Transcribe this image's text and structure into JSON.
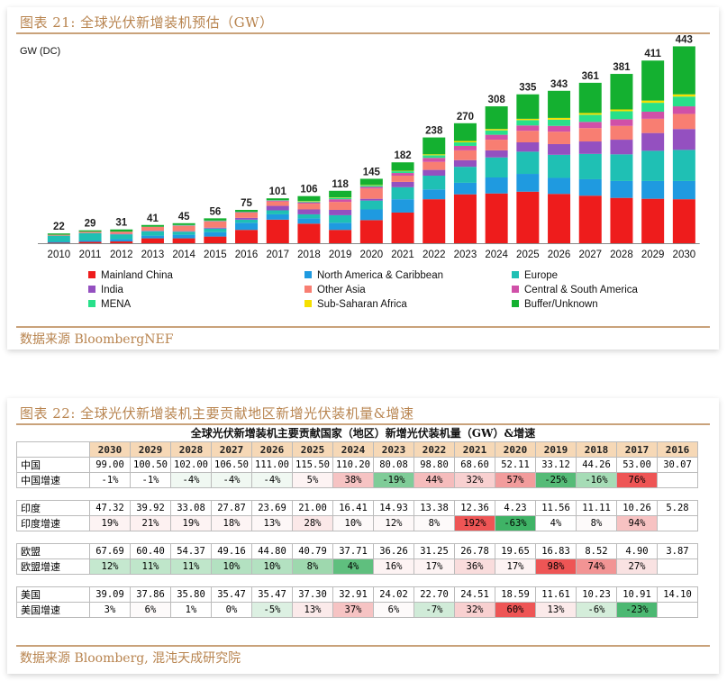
{
  "panel1": {
    "title": "图表 21:  全球光伏新增装机预估（GW）",
    "source": "数据来源  BloombergNEF"
  },
  "panel2": {
    "title": "图表 22:  全球光伏新增装机主要贡献地区新增光伏装机量&增速",
    "table_title": "全球光伏新增装机主要贡献国家（地区）新增光伏装机量（GW）&增速",
    "source": "数据来源  Bloomberg, 混沌天成研究院"
  },
  "chart_data": [
    {
      "type": "bar",
      "stacked": true,
      "ylabel": "GW (DC)",
      "categories": [
        "2010",
        "2011",
        "2012",
        "2013",
        "2014",
        "2015",
        "2016",
        "2017",
        "2018",
        "2019",
        "2020",
        "2021",
        "2022",
        "2023",
        "2024",
        "2025",
        "2026",
        "2027",
        "2028",
        "2029",
        "2030"
      ],
      "totals": [
        22,
        29,
        31,
        41,
        45,
        56,
        75,
        101,
        106,
        118,
        145,
        182,
        238,
        270,
        308,
        335,
        343,
        361,
        381,
        411,
        443
      ],
      "ylim": [
        0,
        450
      ],
      "legend_position": "bottom",
      "series": [
        {
          "name": "Mainland China",
          "color": "#ee1c1c",
          "values": [
            1,
            3,
            4,
            11,
            11,
            15,
            30,
            53,
            44,
            30,
            52,
            69,
            99,
            110,
            112,
            116,
            111,
            107,
            102,
            100,
            99
          ]
        },
        {
          "name": "North America & Caribbean",
          "color": "#1f9ae0",
          "values": [
            2,
            3,
            5,
            6,
            8,
            10,
            16,
            12,
            12,
            16,
            24,
            30,
            22,
            26,
            36,
            40,
            36,
            37,
            38,
            40,
            41
          ]
        },
        {
          "name": "Europe",
          "color": "#1fc0b4",
          "values": [
            14,
            17,
            11,
            10,
            7,
            8,
            7,
            9,
            9,
            17,
            20,
            27,
            31,
            36,
            45,
            50,
            52,
            57,
            60,
            68,
            70
          ]
        },
        {
          "name": "India",
          "color": "#9450c0",
          "values": [
            0,
            0,
            1,
            1,
            1,
            2,
            4,
            10,
            11,
            12,
            4,
            12,
            13,
            15,
            16,
            21,
            24,
            28,
            33,
            40,
            47
          ]
        },
        {
          "name": "Other Asia",
          "color": "#f87e72",
          "values": [
            2,
            3,
            5,
            9,
            12,
            14,
            12,
            10,
            13,
            18,
            23,
            14,
            18,
            22,
            24,
            26,
            28,
            30,
            31,
            32,
            34
          ]
        },
        {
          "name": "Central & South America",
          "color": "#d050a8",
          "values": [
            0,
            0,
            0,
            0,
            1,
            1,
            1,
            2,
            3,
            6,
            4,
            6,
            9,
            10,
            11,
            12,
            13,
            14,
            15,
            16,
            17
          ]
        },
        {
          "name": "MENA",
          "color": "#28e08a",
          "values": [
            0,
            0,
            0,
            0,
            1,
            1,
            1,
            1,
            2,
            3,
            3,
            4,
            6,
            8,
            10,
            12,
            14,
            16,
            18,
            20,
            22
          ]
        },
        {
          "name": "Sub-Saharan Africa",
          "color": "#f5e000",
          "values": [
            0,
            0,
            0,
            0,
            0,
            0,
            0,
            0,
            1,
            1,
            1,
            1,
            2,
            3,
            3,
            3,
            4,
            4,
            4,
            5,
            5
          ]
        },
        {
          "name": "Buffer/Unknown",
          "color": "#14b030",
          "values": [
            3,
            3,
            5,
            4,
            4,
            5,
            4,
            4,
            11,
            15,
            14,
            19,
            38,
            40,
            51,
            55,
            61,
            68,
            80,
            90,
            108
          ]
        }
      ]
    },
    {
      "type": "table",
      "columns": [
        "2030",
        "2029",
        "2028",
        "2027",
        "2026",
        "2025",
        "2024",
        "2023",
        "2022",
        "2021",
        "2020",
        "2019",
        "2018",
        "2017",
        "2016"
      ],
      "groups": [
        {
          "name": "中国",
          "growth_label": "中国增速",
          "values": [
            "99.00",
            "100.50",
            "102.00",
            "106.50",
            "111.00",
            "115.50",
            "110.20",
            "80.08",
            "98.80",
            "68.60",
            "52.11",
            "33.12",
            "44.26",
            "53.00",
            "30.07"
          ],
          "growth": [
            "-1%",
            "-1%",
            "-4%",
            "-4%",
            "-4%",
            "5%",
            "38%",
            "-19%",
            "44%",
            "32%",
            "57%",
            "-25%",
            "-16%",
            "76%",
            ""
          ],
          "growth_colors": [
            "#ffffff",
            "#ffffff",
            "#f0f8f2",
            "#f0f8f2",
            "#f0f8f2",
            "#fdf3f3",
            "#f6c3c3",
            "#7fcc98",
            "#f5bcbc",
            "#f8d0d0",
            "#f29c9c",
            "#55bb77",
            "#a6dcb6",
            "#ee5555",
            "#ffffff"
          ]
        },
        {
          "name": "印度",
          "growth_label": "印度增速",
          "values": [
            "47.32",
            "39.92",
            "33.08",
            "27.87",
            "23.69",
            "21.00",
            "16.41",
            "14.93",
            "13.38",
            "12.36",
            "4.23",
            "11.56",
            "11.11",
            "10.26",
            "5.28"
          ],
          "growth": [
            "19%",
            "21%",
            "19%",
            "18%",
            "13%",
            "28%",
            "10%",
            "12%",
            "8%",
            "192%",
            "-63%",
            "4%",
            "8%",
            "94%",
            ""
          ],
          "growth_colors": [
            "#fdf3f3",
            "#fdf1f1",
            "#fdf3f3",
            "#fdf4f4",
            "#fdf7f7",
            "#fbe8e8",
            "#fdf9f9",
            "#fdf8f8",
            "#fdfafa",
            "#ee5555",
            "#3fb366",
            "#ffffff",
            "#fdfafa",
            "#f7c2c2",
            "#ffffff"
          ]
        },
        {
          "name": "欧盟",
          "growth_label": "欧盟增速",
          "values": [
            "67.69",
            "60.40",
            "54.37",
            "49.16",
            "44.80",
            "40.79",
            "37.71",
            "36.26",
            "31.25",
            "26.78",
            "19.65",
            "16.83",
            "8.52",
            "4.90",
            "3.87"
          ],
          "growth": [
            "12%",
            "11%",
            "11%",
            "10%",
            "10%",
            "8%",
            "4%",
            "16%",
            "17%",
            "36%",
            "17%",
            "98%",
            "74%",
            "27%",
            ""
          ],
          "growth_colors": [
            "#c5e8cf",
            "#bfe6ca",
            "#bfe6ca",
            "#b3e1c1",
            "#b3e1c1",
            "#9ed8ae",
            "#5fbf7e",
            "#fdf3f3",
            "#fdf3f3",
            "#f9dcdc",
            "#fdf3f3",
            "#ee5555",
            "#f29494",
            "#f9e2e2",
            "#ffffff"
          ]
        },
        {
          "name": "美国",
          "growth_label": "美国增速",
          "values": [
            "39.09",
            "37.86",
            "35.80",
            "35.47",
            "35.47",
            "37.30",
            "32.91",
            "24.02",
            "22.70",
            "24.51",
            "18.59",
            "11.61",
            "10.23",
            "10.91",
            "14.10"
          ],
          "growth": [
            "3%",
            "6%",
            "1%",
            "0%",
            "-5%",
            "13%",
            "37%",
            "6%",
            "-7%",
            "32%",
            "60%",
            "13%",
            "-6%",
            "-23%",
            ""
          ],
          "growth_colors": [
            "#ffffff",
            "#fdfafa",
            "#ffffff",
            "#ffffff",
            "#dcf0e2",
            "#fbeaea",
            "#f6c3c3",
            "#fdfafa",
            "#d0ebd8",
            "#f8d0d0",
            "#ee5555",
            "#fbeaea",
            "#d4edda",
            "#4cb872",
            "#ffffff"
          ]
        }
      ]
    }
  ]
}
